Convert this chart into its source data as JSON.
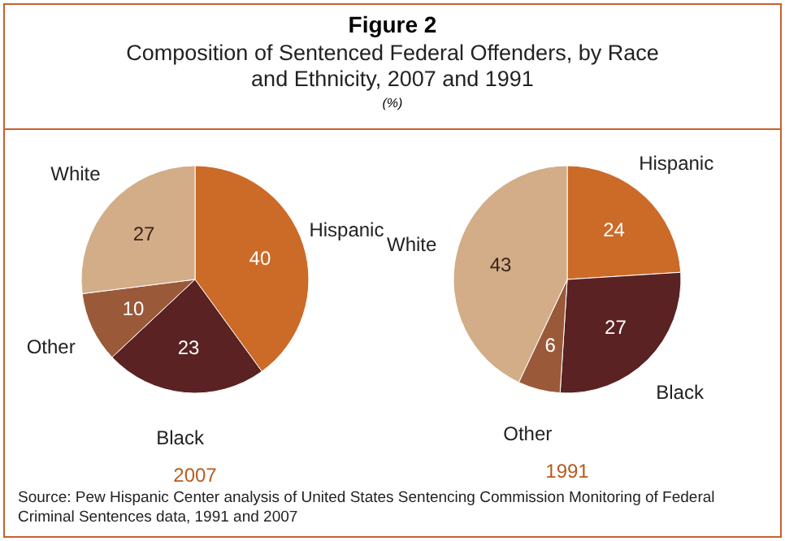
{
  "chart_data": [
    {
      "type": "other",
      "title": "Figure 2",
      "subtitle": "Composition of Sentenced Federal Offenders, by Race and Ethnicity, 2007 and 1991",
      "annotations": [
        "(%)",
        "Source: Pew Hispanic Center analysis of United States Sentencing Commission Monitoring of Federal Criminal Sentences data, 1991 and 2007"
      ]
    },
    {
      "type": "pie",
      "xlabel": "2007",
      "categories": [
        "Hispanic",
        "Black",
        "Other",
        "White"
      ],
      "values": [
        40,
        23,
        10,
        27
      ],
      "colors": [
        "#cc6a28",
        "#5a2222",
        "#9a5a3a",
        "#d2ad88"
      ],
      "data_labels": true
    },
    {
      "type": "pie",
      "xlabel": "1991",
      "categories": [
        "Hispanic",
        "Black",
        "Other",
        "White"
      ],
      "values": [
        24,
        27,
        6,
        43
      ],
      "colors": [
        "#cc6a28",
        "#5a2222",
        "#9a5a3a",
        "#d2ad88"
      ],
      "data_labels": true
    }
  ]
}
